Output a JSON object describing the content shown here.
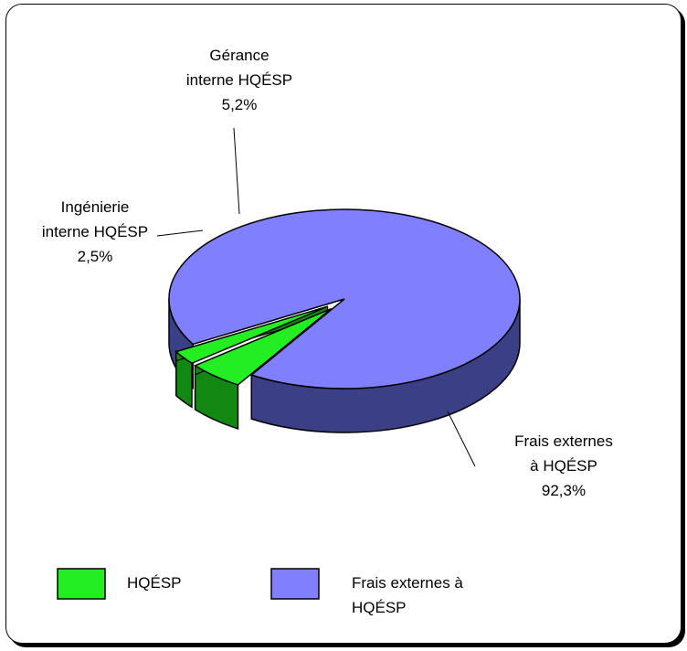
{
  "chart_data": {
    "type": "pie",
    "slices": [
      {
        "label_lines": [
          "Frais externes",
          "à HQÉSP"
        ],
        "value": 92.3,
        "value_text": "92,3%",
        "color": "#8080ff",
        "dark": "#3b3f86",
        "legend": "hqesp_external"
      },
      {
        "label_lines": [
          "Ingénierie",
          "interne HQÉSP"
        ],
        "value": 2.5,
        "value_text": "2,5%",
        "color": "#22ee22",
        "dark": "#118811",
        "legend": "hqesp"
      },
      {
        "label_lines": [
          "Gérance",
          "interne HQÉSP"
        ],
        "value": 5.2,
        "value_text": "5,2%",
        "color": "#22ee22",
        "dark": "#118811",
        "legend": "hqesp"
      }
    ],
    "legend": [
      {
        "key": "hqesp",
        "label_lines": [
          "HQÉSP"
        ],
        "color": "#22ee22"
      },
      {
        "key": "hqesp_external",
        "label_lines": [
          "Frais externes à",
          "HQÉSP"
        ],
        "color": "#8080ff"
      }
    ],
    "legend_placement": "bottom",
    "three_d": true
  }
}
